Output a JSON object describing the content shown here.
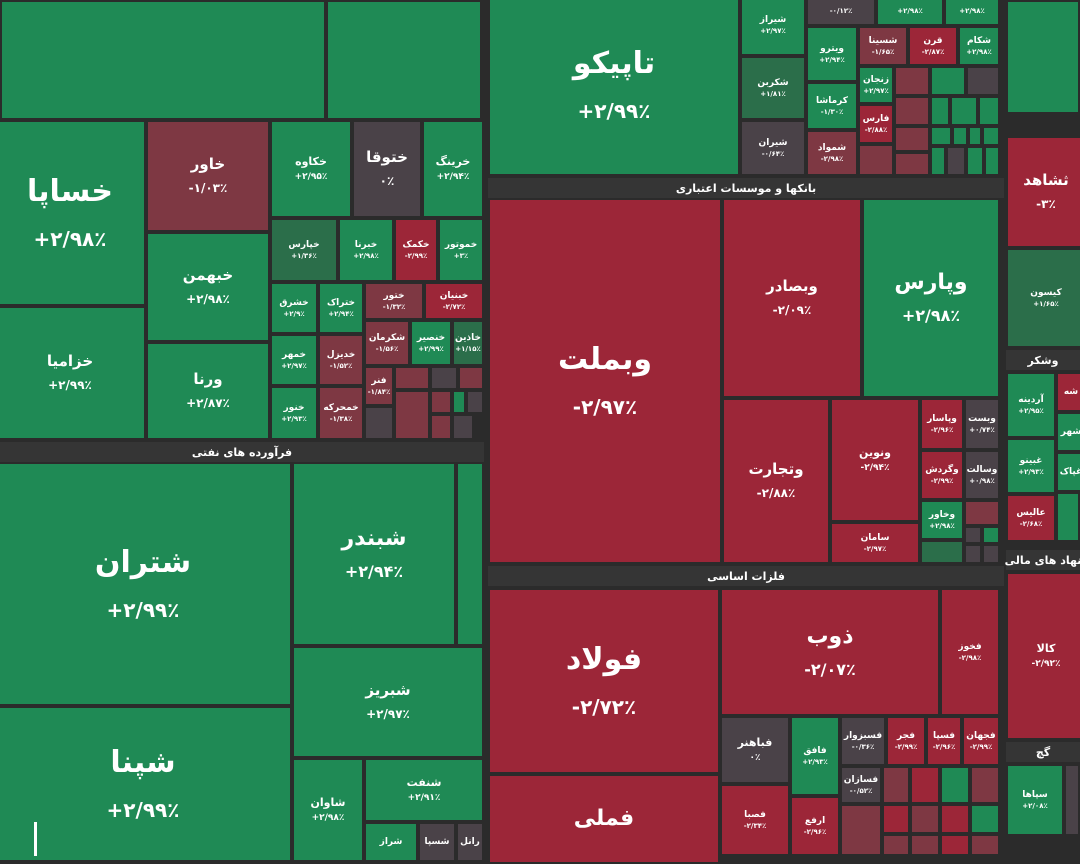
{
  "sectors": {
    "oil": "فرآورده های نفتی",
    "banks": "بانکها و موسسات اعتباری",
    "metals": "فلزات اساسی",
    "sugar": "وشکر",
    "finance": "نهاد های مالی",
    "gach": "گچ"
  },
  "tiles": {
    "khsapa": {
      "name": "خساپا",
      "pct": "+۲/۹۸٪"
    },
    "khavar": {
      "name": "خاور",
      "pct": "-۱/۰۳٪"
    },
    "khakave": {
      "name": "خکاوه",
      "pct": "+۲/۹۵٪"
    },
    "khotoga": {
      "name": "ختوقا",
      "pct": "۰٪"
    },
    "kharing": {
      "name": "خرینگ",
      "pct": "+۲/۹۴٪"
    },
    "khazamia": {
      "name": "خزامیا",
      "pct": "+۲/۹۹٪"
    },
    "khbahman": {
      "name": "خبهمن",
      "pct": "+۲/۹۸٪"
    },
    "vorna": {
      "name": "ورنا",
      "pct": "+۲/۸۷٪"
    },
    "khiyaras": {
      "name": "خپارس",
      "pct": "+۱/۳۶٪"
    },
    "khabarna": {
      "name": "خبرنا",
      "pct": "+۲/۹۸٪"
    },
    "khakamak": {
      "name": "خکمک",
      "pct": "-۲/۹۹٪"
    },
    "khamotor": {
      "name": "خموتور",
      "pct": "+۳٪"
    },
    "khshargh": {
      "name": "خشرق",
      "pct": "+۲/۹٪"
    },
    "khteraak": {
      "name": "ختراک",
      "pct": "+۲/۹۴٪"
    },
    "khtur": {
      "name": "ختور",
      "pct": "-۱/۳۲٪"
    },
    "khbonyan": {
      "name": "خبنیان",
      "pct": "-۲/۷۲٪"
    },
    "khomehr": {
      "name": "خمهر",
      "pct": "+۲/۹۷٪"
    },
    "khdiz": {
      "name": "خدیزل",
      "pct": "-۱/۵۲٪"
    },
    "khkerman": {
      "name": "شکرمان",
      "pct": "-۱/۵۶٪"
    },
    "khanser": {
      "name": "خنصیر",
      "pct": "+۲/۹۹٪"
    },
    "khazin": {
      "name": "خاذین",
      "pct": "+۱/۱۵٪"
    },
    "khavar2": {
      "name": "خنور",
      "pct": "+۲/۹۳٪"
    },
    "khamrah": {
      "name": "خمحرکه",
      "pct": "-۱/۳۸٪"
    },
    "fanar": {
      "name": "فنر",
      "pct": "-۱/۸۴٪"
    },
    "shetran": {
      "name": "شتران",
      "pct": "+۲/۹۹٪"
    },
    "shebandar": {
      "name": "شبندر",
      "pct": "+۲/۹۴٪"
    },
    "shebriz": {
      "name": "شبریز",
      "pct": "+۲/۹۷٪"
    },
    "shepna": {
      "name": "شپنا",
      "pct": "+۲/۹۹٪"
    },
    "shenaft": {
      "name": "شنفت",
      "pct": "+۲/۹۱٪"
    },
    "shavan": {
      "name": "شاوان",
      "pct": "+۲/۹۸٪"
    },
    "shespa": {
      "name": "شسپا",
      "pct": ""
    },
    "shraz": {
      "name": "شراز",
      "pct": ""
    },
    "shranel": {
      "name": "رانل",
      "pct": ""
    },
    "tapiko": {
      "name": "تاپیکو",
      "pct": "+۲/۹۹٪"
    },
    "shiraz": {
      "name": "شیراز",
      "pct": "+۲/۹۷٪"
    },
    "shekarin": {
      "name": "شکربن",
      "pct": "+۱/۸۱٪"
    },
    "shiran": {
      "name": "شیران",
      "pct": "-۰/۶۴٪"
    },
    "vitro": {
      "name": "ویترو",
      "pct": "+۲/۹۴٪"
    },
    "shesina": {
      "name": "شسینا",
      "pct": "-۱/۶۵٪"
    },
    "gharn": {
      "name": "قرن",
      "pct": "-۲/۸۷٪"
    },
    "shekam": {
      "name": "شکام",
      "pct": "+۲/۹۸٪"
    },
    "zanjan": {
      "name": "زنجان",
      "pct": "+۲/۹۷٪"
    },
    "kermasha": {
      "name": "کرماشا",
      "pct": "-۱/۳۰٪"
    },
    "faras": {
      "name": "فارس",
      "pct": "-۲/۸۸٪"
    },
    "shamvad": {
      "name": "شموا‌د",
      "pct": "-۲/۹۸٪"
    },
    "top1": {
      "name": "",
      "pct": "-۰/۱۲٪"
    },
    "top2": {
      "name": "",
      "pct": "+۲/۹۸٪"
    },
    "top3": {
      "name": "",
      "pct": "+۲/۹۸٪"
    },
    "vbmelat": {
      "name": "وبملت",
      "pct": "-۲/۹۷٪"
    },
    "vbsader": {
      "name": "وبصادر",
      "pct": "-۲/۰۹٪"
    },
    "vpars": {
      "name": "وپارس",
      "pct": "+۲/۹۸٪"
    },
    "vtejarat": {
      "name": "وتجارت",
      "pct": "-۲/۸۸٪"
    },
    "vnovin": {
      "name": "ونوین",
      "pct": "-۲/۹۴٪"
    },
    "vpasar": {
      "name": "وپاسار",
      "pct": "-۲/۹۶٪"
    },
    "vbest": {
      "name": "وبست",
      "pct": "+۰/۷۴٪"
    },
    "vgardesh": {
      "name": "وگردش",
      "pct": "-۲/۹۹٪"
    },
    "vsalat": {
      "name": "وسالت",
      "pct": "+۰/۹۸٪"
    },
    "vkhavar": {
      "name": "وخاور",
      "pct": "+۲/۹۸٪"
    },
    "saman": {
      "name": "سامان",
      "pct": "-۲/۹۷٪"
    },
    "foolad": {
      "name": "فولاد",
      "pct": "-۲/۷۲٪"
    },
    "zob": {
      "name": "ذوب",
      "pct": "-۲/۰۷٪"
    },
    "fkhoz": {
      "name": "فخوز",
      "pct": "-۲/۹۸٪"
    },
    "fmeli": {
      "name": "فملی",
      "pct": ""
    },
    "fbahonar": {
      "name": "فباهنر",
      "pct": "۰٪"
    },
    "fafagh": {
      "name": "فافق",
      "pct": "+۲/۹۳٪"
    },
    "fsabzevar": {
      "name": "فسبزوار",
      "pct": "-۰/۳۶٪"
    },
    "fajr": {
      "name": "فجر",
      "pct": "-۲/۹۹٪"
    },
    "fesepa": {
      "name": "فسپا",
      "pct": "-۲/۹۶٪"
    },
    "fjahan": {
      "name": "فجهان",
      "pct": "-۲/۹۹٪"
    },
    "fesaran": {
      "name": "فسازان",
      "pct": "-۰/۵۲٪"
    },
    "fasaba": {
      "name": "فصبا",
      "pct": "-۲/۳۴٪"
    },
    "arfa": {
      "name": "ارفع",
      "pct": "-۲/۹۶٪"
    },
    "tshahed": {
      "name": "ثشاهد",
      "pct": "-۳٪"
    },
    "kison": {
      "name": "کیسون",
      "pct": "+۱/۶۵٪"
    },
    "ardineh": {
      "name": "آردینه",
      "pct": "+۲/۹۵٪"
    },
    "gbino": {
      "name": "غبینو",
      "pct": "+۲/۹۳٪"
    },
    "alis": {
      "name": "عالیس",
      "pct": "-۲/۶۸٪"
    },
    "shahd": {
      "name": "شهر",
      "pct": ""
    },
    "shad": {
      "name": "شه",
      "pct": ""
    },
    "ghpak": {
      "name": "غپاک",
      "pct": ""
    },
    "kala": {
      "name": "کالا",
      "pct": "-۲/۹۲٪"
    },
    "sepaha": {
      "name": "سپاها",
      "pct": "+۲/۰۸٪"
    }
  }
}
